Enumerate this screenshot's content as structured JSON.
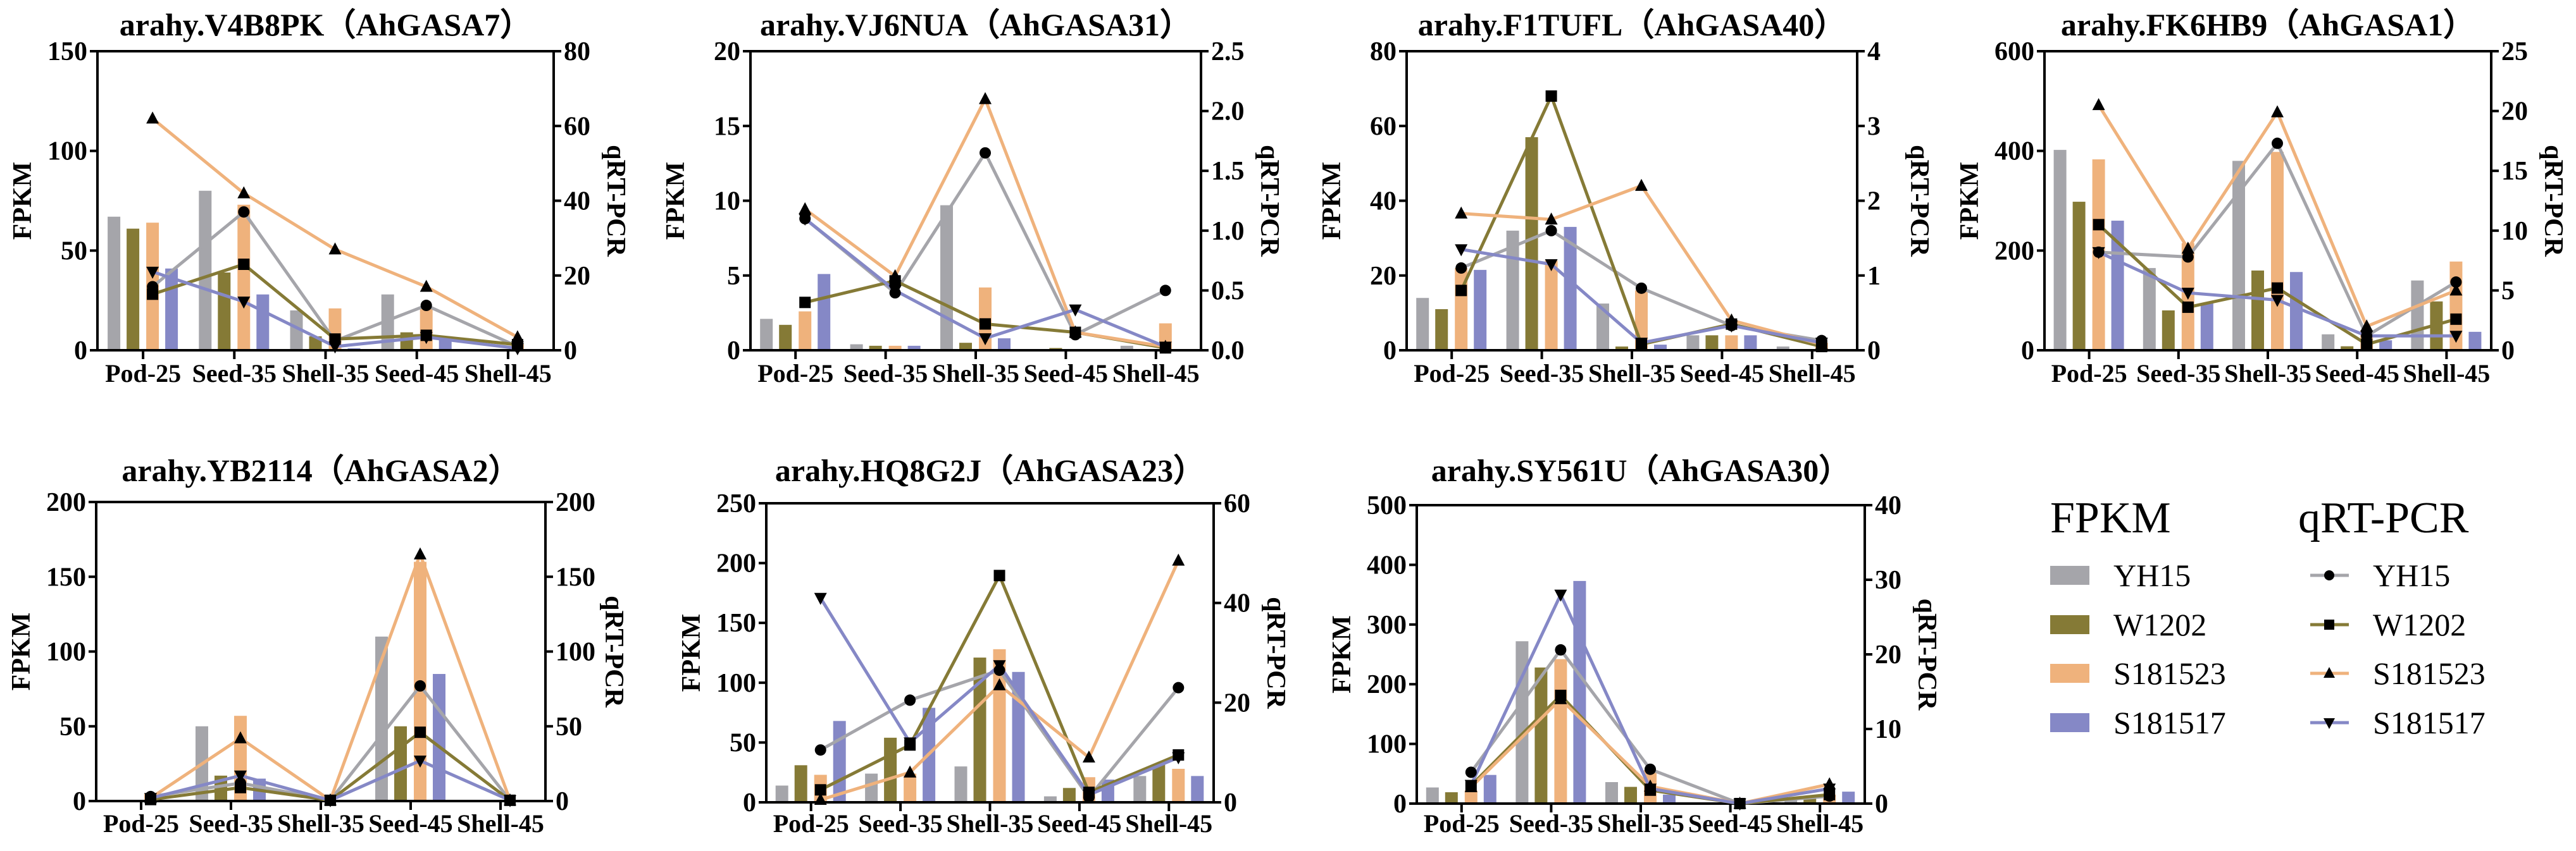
{
  "colors": {
    "YH15": "#a5a5aa",
    "W1202": "#857a36",
    "S181523": "#efb27c",
    "S181517": "#8588c6",
    "marker": "#000000"
  },
  "legend": {
    "fpkm_title": "FPKM",
    "qrt_title": "qRT-PCR",
    "fpkm_items": [
      "YH15",
      "W1202",
      "S181523",
      "S181517"
    ],
    "qrt_items": [
      "YH15",
      "W1202",
      "S181523",
      "S181517"
    ],
    "qrt_markers": [
      "circle",
      "square",
      "triangle-up",
      "triangle-down"
    ]
  },
  "chart_data": [
    {
      "type": "bar+line",
      "title": "arahy.V4B8PK（AhGASA7）",
      "categories": [
        "Pod-25",
        "Seed-35",
        "Shell-35",
        "Seed-45",
        "Shell-45"
      ],
      "ylabel": "FPKM",
      "y2label": "qRT-PCR",
      "ylim": [
        0,
        150
      ],
      "y2lim": [
        0,
        80
      ],
      "yticks": [
        "0",
        "50",
        "100",
        "150"
      ],
      "y2ticks": [
        "0",
        "20",
        "40",
        "60",
        "80"
      ],
      "fpkm": [
        {
          "name": "YH15",
          "values": [
            67,
            80,
            20,
            28,
            0.5
          ]
        },
        {
          "name": "W1202",
          "values": [
            61,
            39,
            7,
            9,
            0
          ]
        },
        {
          "name": "S181523",
          "values": [
            64,
            73,
            21,
            21,
            3
          ]
        },
        {
          "name": "S181517",
          "values": [
            41,
            28,
            1,
            7,
            0
          ]
        }
      ],
      "qrt": [
        {
          "name": "YH15",
          "values": [
            17,
            37,
            2.5,
            12,
            1
          ]
        },
        {
          "name": "W1202",
          "values": [
            15,
            23,
            3,
            4,
            1.5
          ]
        },
        {
          "name": "S181523",
          "values": [
            62,
            42,
            27,
            17,
            3.5
          ]
        },
        {
          "name": "S181517",
          "values": [
            21,
            13,
            1,
            3.5,
            0.5
          ]
        }
      ]
    },
    {
      "type": "bar+line",
      "title": "arahy.VJ6NUA（AhGASA31）",
      "categories": [
        "Pod-25",
        "Seed-35",
        "Shell-35",
        "Seed-45",
        "Shell-45"
      ],
      "ylabel": "FPKM",
      "y2label": "qRT-PCR",
      "ylim": [
        0,
        20
      ],
      "y2lim": [
        0,
        2.5
      ],
      "yticks": [
        "0",
        "5",
        "10",
        "15",
        "20"
      ],
      "y2ticks": [
        "0.0",
        "0.5",
        "1.0",
        "1.5",
        "2.0",
        "2.5"
      ],
      "fpkm": [
        {
          "name": "YH15",
          "values": [
            2.1,
            0.4,
            9.7,
            0.05,
            0.3
          ]
        },
        {
          "name": "W1202",
          "values": [
            1.7,
            0.3,
            0.5,
            0.15,
            0
          ]
        },
        {
          "name": "S181523",
          "values": [
            2.6,
            0.3,
            4.2,
            0,
            1.8
          ]
        },
        {
          "name": "S181517",
          "values": [
            5.1,
            0.3,
            0.8,
            0,
            0
          ]
        }
      ],
      "qrt": [
        {
          "name": "YH15",
          "values": [
            1.1,
            0.48,
            1.65,
            0.13,
            0.5
          ]
        },
        {
          "name": "W1202",
          "values": [
            0.4,
            0.58,
            0.22,
            0.15,
            0.02
          ]
        },
        {
          "name": "S181523",
          "values": [
            1.18,
            0.62,
            2.1,
            0.15,
            0.03
          ]
        },
        {
          "name": "S181517",
          "values": [
            1.1,
            0.5,
            0.1,
            0.34,
            0.03
          ]
        }
      ]
    },
    {
      "type": "bar+line",
      "title": "arahy.F1TUFL（AhGASA40）",
      "categories": [
        "Pod-25",
        "Seed-35",
        "Shell-35",
        "Seed-45",
        "Shell-45"
      ],
      "ylabel": "FPKM",
      "y2label": "qRT-PCR",
      "ylim": [
        0,
        80
      ],
      "y2lim": [
        0,
        4
      ],
      "yticks": [
        "0",
        "20",
        "40",
        "60",
        "80"
      ],
      "y2ticks": [
        "0",
        "1",
        "2",
        "3",
        "4"
      ],
      "fpkm": [
        {
          "name": "YH15",
          "values": [
            14,
            32,
            12.5,
            4,
            1
          ]
        },
        {
          "name": "W1202",
          "values": [
            11,
            57,
            1,
            4,
            0
          ]
        },
        {
          "name": "S181523",
          "values": [
            22,
            24,
            16,
            4,
            2
          ]
        },
        {
          "name": "S181517",
          "values": [
            21.5,
            33,
            1.5,
            4,
            0.2
          ]
        }
      ],
      "qrt": [
        {
          "name": "YH15",
          "values": [
            1.1,
            1.6,
            0.83,
            0.33,
            0.13
          ]
        },
        {
          "name": "W1202",
          "values": [
            0.8,
            3.4,
            0.08,
            0.35,
            0.05
          ]
        },
        {
          "name": "S181523",
          "values": [
            1.83,
            1.75,
            2.2,
            0.4,
            0.08
          ]
        },
        {
          "name": "S181517",
          "values": [
            1.35,
            1.15,
            0.1,
            0.33,
            0.1
          ]
        }
      ]
    },
    {
      "type": "bar+line",
      "title": "arahy.FK6HB9（AhGASA1）",
      "categories": [
        "Pod-25",
        "Seed-35",
        "Shell-35",
        "Seed-45",
        "Shell-45"
      ],
      "ylabel": "FPKM",
      "y2label": "qRT-PCR",
      "ylim": [
        0,
        600
      ],
      "y2lim": [
        0,
        25
      ],
      "yticks": [
        "0",
        "200",
        "400",
        "600"
      ],
      "y2ticks": [
        "0",
        "5",
        "10",
        "15",
        "20",
        "25"
      ],
      "fpkm": [
        {
          "name": "YH15",
          "values": [
            402,
            165,
            380,
            32,
            140
          ]
        },
        {
          "name": "W1202",
          "values": [
            298,
            80,
            160,
            8,
            98
          ]
        },
        {
          "name": "S181523",
          "values": [
            383,
            215,
            398,
            40,
            178
          ]
        },
        {
          "name": "S181517",
          "values": [
            260,
            95,
            157,
            20,
            37
          ]
        }
      ],
      "qrt": [
        {
          "name": "YH15",
          "values": [
            8.2,
            7.8,
            17.3,
            1.2,
            5.7
          ]
        },
        {
          "name": "W1202",
          "values": [
            10.5,
            3.6,
            5.2,
            0.5,
            2.6
          ]
        },
        {
          "name": "S181523",
          "values": [
            20.5,
            8.5,
            19.9,
            2,
            5
          ]
        },
        {
          "name": "S181517",
          "values": [
            8.2,
            4.8,
            4.2,
            1.2,
            1.2
          ]
        }
      ]
    },
    {
      "type": "bar+line",
      "title": "arahy.YB2114（AhGASA2）",
      "categories": [
        "Pod-25",
        "Seed-35",
        "Shell-35",
        "Seed-45",
        "Shell-45"
      ],
      "ylabel": "FPKM",
      "y2label": "qRT-PCR",
      "ylim": [
        0,
        200
      ],
      "y2lim": [
        0,
        200
      ],
      "yticks": [
        "0",
        "50",
        "100",
        "150",
        "200"
      ],
      "y2ticks": [
        "0",
        "50",
        "100",
        "150",
        "200"
      ],
      "fpkm": [
        {
          "name": "YH15",
          "values": [
            0,
            50,
            0,
            110,
            0
          ]
        },
        {
          "name": "W1202",
          "values": [
            0,
            17,
            0,
            50,
            0
          ]
        },
        {
          "name": "S181523",
          "values": [
            5,
            57,
            0,
            160,
            0
          ]
        },
        {
          "name": "S181517",
          "values": [
            0,
            15,
            0,
            85,
            0
          ]
        }
      ],
      "qrt": [
        {
          "name": "YH15",
          "values": [
            3,
            12,
            0.5,
            77,
            0.5
          ]
        },
        {
          "name": "W1202",
          "values": [
            1,
            9,
            0.5,
            46,
            0.5
          ]
        },
        {
          "name": "S181523",
          "values": [
            2,
            42,
            0.5,
            165,
            0.5
          ]
        },
        {
          "name": "S181517",
          "values": [
            2,
            17,
            0.5,
            27,
            0.5
          ]
        }
      ]
    },
    {
      "type": "bar+line",
      "title": "arahy.HQ8G2J（AhGASA23）",
      "categories": [
        "Pod-25",
        "Seed-35",
        "Shell-35",
        "Seed-45",
        "Shell-45"
      ],
      "ylabel": "FPKM",
      "y2label": "qRT-PCR",
      "ylim": [
        0,
        250
      ],
      "y2lim": [
        0,
        60
      ],
      "yticks": [
        "0",
        "50",
        "100",
        "150",
        "200",
        "250"
      ],
      "y2ticks": [
        "0",
        "20",
        "40",
        "60"
      ],
      "fpkm": [
        {
          "name": "YH15",
          "values": [
            14,
            24,
            30,
            5,
            22
          ]
        },
        {
          "name": "W1202",
          "values": [
            31,
            54,
            121,
            12,
            32
          ]
        },
        {
          "name": "S181523",
          "values": [
            23,
            24,
            128,
            21,
            28
          ]
        },
        {
          "name": "S181517",
          "values": [
            68,
            79,
            109,
            19,
            22
          ]
        }
      ],
      "qrt": [
        {
          "name": "YH15",
          "values": [
            10.5,
            20.5,
            26.5,
            1,
            23
          ]
        },
        {
          "name": "W1202",
          "values": [
            2.5,
            11.5,
            45.5,
            2,
            9.5
          ]
        },
        {
          "name": "S181523",
          "values": [
            0.5,
            6,
            23.5,
            9,
            48.5
          ]
        },
        {
          "name": "S181517",
          "values": [
            41,
            12,
            27.5,
            1.5,
            9
          ]
        }
      ]
    },
    {
      "type": "bar+line",
      "title": "arahy.SY561U（AhGASA30）",
      "categories": [
        "Pod-25",
        "Seed-35",
        "Shell-35",
        "Seed-45",
        "Shell-45"
      ],
      "ylabel": "FPKM",
      "y2label": "qRT-PCR",
      "ylim": [
        0,
        500
      ],
      "y2lim": [
        0,
        40
      ],
      "yticks": [
        "0",
        "100",
        "200",
        "300",
        "400",
        "500"
      ],
      "y2ticks": [
        "0",
        "10",
        "20",
        "30",
        "40"
      ],
      "fpkm": [
        {
          "name": "YH15",
          "values": [
            27,
            272,
            36,
            0,
            8
          ]
        },
        {
          "name": "W1202",
          "values": [
            19,
            228,
            28,
            0,
            12
          ]
        },
        {
          "name": "S181523",
          "values": [
            22,
            242,
            56,
            0,
            15
          ]
        },
        {
          "name": "S181517",
          "values": [
            48,
            373,
            15,
            0,
            20
          ]
        }
      ],
      "qrt": [
        {
          "name": "YH15",
          "values": [
            4.2,
            20.6,
            4.6,
            0,
            1
          ]
        },
        {
          "name": "W1202",
          "values": [
            2.4,
            14.5,
            1.8,
            0,
            1.2
          ]
        },
        {
          "name": "S181523",
          "values": [
            2.2,
            14,
            2.3,
            0,
            2.6
          ]
        },
        {
          "name": "S181517",
          "values": [
            2.5,
            28,
            2,
            0,
            2
          ]
        }
      ]
    }
  ]
}
